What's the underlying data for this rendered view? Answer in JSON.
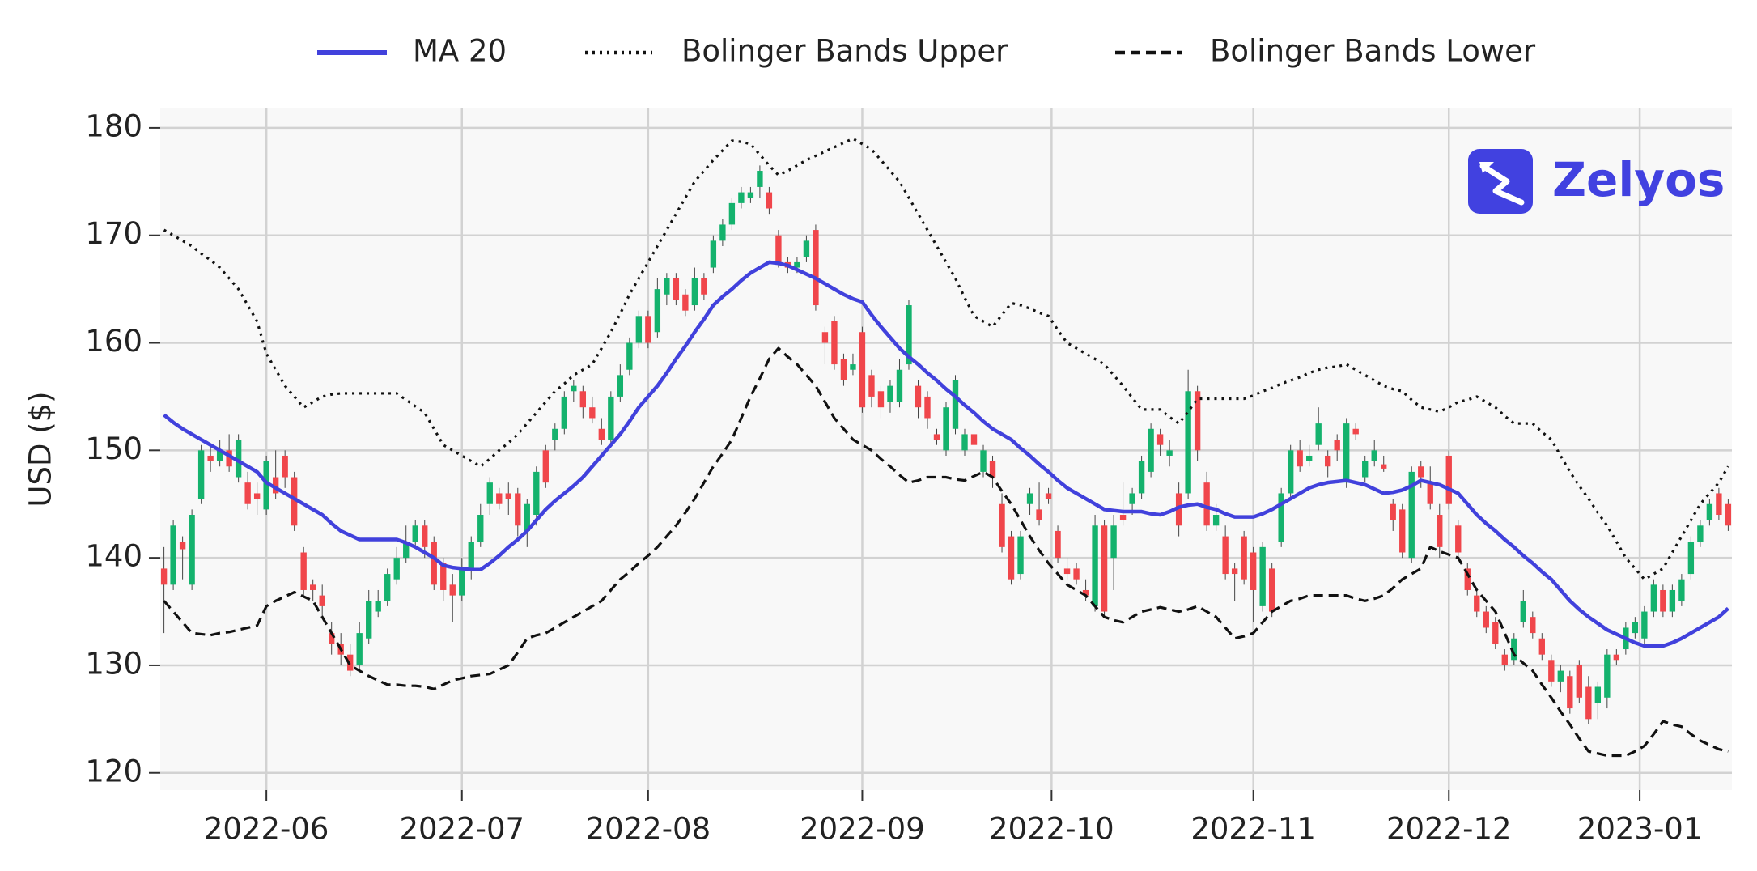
{
  "chart_data": {
    "type": "candlestick",
    "categories": [
      null,
      null,
      null,
      null,
      null,
      null,
      null,
      null,
      null,
      null,
      null,
      null,
      null,
      null,
      null,
      null,
      null,
      null,
      null,
      null,
      null,
      null,
      null,
      null,
      null,
      null,
      null,
      null,
      null,
      null,
      null,
      null,
      null,
      null,
      null,
      null,
      null,
      null,
      null,
      null,
      null,
      null,
      null,
      null,
      null,
      null,
      null,
      null,
      null,
      null,
      null,
      null,
      null,
      null,
      null,
      null,
      null,
      null,
      null,
      null,
      null,
      null,
      null,
      null,
      null,
      null,
      null,
      null,
      null,
      null,
      null,
      null,
      null,
      null,
      null,
      null,
      null,
      null,
      null,
      null,
      null,
      null,
      null,
      null,
      null,
      null,
      null,
      null,
      null,
      null,
      null,
      null,
      null,
      null,
      null,
      null,
      null,
      null,
      null,
      null,
      null,
      null,
      null,
      null,
      null,
      null,
      null,
      null,
      null,
      null,
      null,
      null,
      null,
      null,
      null,
      null,
      null,
      null,
      null,
      null,
      null,
      null,
      null,
      null,
      null,
      null,
      null,
      null,
      null,
      null,
      null,
      null,
      null,
      null,
      null,
      null,
      null,
      null,
      null,
      null,
      null,
      null,
      null,
      null,
      null,
      null,
      null,
      null,
      null,
      null,
      null,
      null,
      null,
      null,
      null,
      null,
      null,
      null,
      null,
      null,
      null,
      null,
      null,
      null,
      null,
      null,
      null,
      null,
      null
    ],
    "open": [
      139,
      137.5,
      141.5,
      137.5,
      145.5,
      149.5,
      149,
      150,
      147.5,
      147,
      146,
      144.5,
      147.5,
      149.5,
      147.5,
      140.5,
      137.5,
      136.5,
      133,
      132,
      131,
      130,
      132.5,
      135,
      136,
      138,
      140,
      141.5,
      143,
      141.5,
      139.5,
      137.5,
      136.5,
      139,
      141.5,
      145,
      146,
      146,
      146,
      142.5,
      144,
      150,
      151,
      152,
      155.5,
      155.5,
      154,
      152,
      151,
      155,
      157.5,
      160,
      162.5,
      161,
      164.5,
      166,
      164.5,
      163.5,
      166,
      167,
      169.5,
      171,
      173,
      173.5,
      174.5,
      174,
      170,
      167.5,
      167,
      168,
      170.5,
      161,
      162,
      158.5,
      157.5,
      161,
      157,
      155.5,
      154.5,
      154.5,
      158,
      156,
      155,
      151.5,
      150,
      152,
      150,
      151.5,
      148,
      149,
      145,
      142,
      138.5,
      145,
      144.5,
      146,
      142.5,
      139,
      139,
      137,
      135.5,
      143,
      140,
      144,
      145,
      146,
      148,
      151.5,
      149.5,
      146,
      146,
      155.5,
      147,
      143,
      142,
      139,
      142,
      140.5,
      135.5,
      139,
      141.5,
      146,
      150,
      149,
      150.5,
      149.5,
      151,
      147,
      152,
      147.5,
      149,
      148.7,
      145,
      144.5,
      140,
      148.5,
      147,
      144,
      149.5,
      143,
      139,
      136.5,
      135,
      134,
      131,
      130.5,
      134,
      134.5,
      132.5,
      130.5,
      128.5,
      129,
      130,
      128,
      126.5,
      127,
      131,
      131.5,
      133,
      132.5,
      135,
      137,
      135,
      136,
      138.5,
      141.5,
      143.5,
      146,
      145
    ],
    "high": [
      141,
      143.5,
      142,
      144.5,
      150.5,
      150.5,
      151,
      151.5,
      151.5,
      148,
      147,
      149.5,
      150,
      150,
      148,
      141,
      138,
      137.5,
      134,
      133,
      132,
      134,
      137,
      137,
      139,
      141,
      143,
      143.5,
      143.5,
      142,
      140,
      138.5,
      140,
      142,
      145,
      147.5,
      146.5,
      147,
      146.5,
      145.5,
      148.5,
      150.5,
      152.5,
      155.5,
      156.5,
      156,
      155,
      153,
      155.5,
      158,
      160.5,
      163,
      163,
      166,
      166.5,
      166.5,
      165,
      167,
      166.5,
      170,
      171.5,
      173.5,
      174.5,
      174.5,
      176.5,
      174.5,
      170.5,
      168,
      168,
      170,
      171,
      161.5,
      162.5,
      159,
      159,
      161.5,
      157.5,
      156,
      156.5,
      158.5,
      164,
      156.5,
      155.5,
      152,
      154.5,
      157,
      152,
      152,
      150.5,
      149.5,
      146,
      142.5,
      142.5,
      146.5,
      147,
      146.5,
      143,
      140,
      139.5,
      138,
      144,
      143.5,
      144,
      147,
      146.5,
      149.5,
      152.5,
      152,
      151,
      147,
      157.5,
      156,
      148,
      145,
      143,
      139.5,
      142.5,
      141,
      141.5,
      139.5,
      146.5,
      150.5,
      151,
      150.5,
      154,
      150,
      151.5,
      153,
      152.5,
      149.5,
      151,
      149.5,
      145.5,
      145,
      148.5,
      149,
      148.5,
      145,
      150,
      143.5,
      139.5,
      137,
      135.5,
      134.5,
      131.5,
      133,
      137,
      135,
      133,
      131,
      130,
      129.5,
      130.5,
      129,
      128.5,
      131.5,
      131.5,
      134,
      134.5,
      135.5,
      138,
      137.5,
      137.5,
      138.5,
      142,
      143.5,
      145.5,
      146.5,
      145.5
    ],
    "low": [
      133,
      137,
      138,
      137,
      145,
      148,
      148.5,
      148,
      147,
      144.5,
      144,
      144,
      145.5,
      146.5,
      142.5,
      136.5,
      136,
      134.5,
      131,
      130,
      129,
      129.5,
      132,
      134.5,
      135.5,
      137.5,
      139.5,
      141,
      140,
      137,
      136,
      134,
      136,
      138,
      141,
      144,
      144.5,
      144,
      142,
      141,
      143,
      146.5,
      150,
      151.5,
      154.5,
      153,
      152.5,
      150.5,
      150.5,
      154.5,
      157,
      159.5,
      159.5,
      160.5,
      163.5,
      163.5,
      162.5,
      163,
      164,
      166.5,
      169,
      170.5,
      172.5,
      173,
      173.5,
      172,
      167,
      166.5,
      166.5,
      167.5,
      163,
      158,
      157.5,
      156,
      157,
      153.5,
      154,
      153,
      153.5,
      154,
      157.5,
      153,
      152,
      150.5,
      149.5,
      151.5,
      149.5,
      149,
      147.5,
      146.5,
      140.5,
      137.5,
      138,
      144,
      143,
      145,
      139.5,
      138,
      137.5,
      136,
      135,
      134.5,
      137,
      143,
      144,
      145.5,
      147.5,
      149.5,
      148.5,
      142,
      145.5,
      149,
      142.5,
      142.5,
      138,
      136,
      137.5,
      134,
      135,
      134.5,
      141,
      145.5,
      148,
      148.5,
      150,
      147.5,
      149,
      146.5,
      151,
      147,
      148.5,
      148,
      142.5,
      140,
      139.5,
      146.5,
      144.5,
      140,
      144.5,
      140,
      136.5,
      134.5,
      133,
      131.5,
      129.5,
      130,
      133.5,
      132.5,
      130.5,
      128,
      127.5,
      125.5,
      126.5,
      124.5,
      125,
      126,
      130,
      131,
      132.5,
      132,
      134.5,
      134.5,
      134.5,
      135.5,
      138,
      141,
      143,
      143.5,
      142.5
    ],
    "close": [
      137.5,
      143,
      140.8,
      144,
      150,
      149,
      150,
      148.5,
      151,
      145,
      145.5,
      149,
      146,
      147.5,
      143,
      137,
      137,
      135.5,
      132,
      131,
      129.5,
      133,
      136,
      136,
      138.5,
      140,
      141.5,
      143,
      141,
      137.5,
      137,
      136.5,
      139,
      141.5,
      144,
      147,
      145,
      145.5,
      143,
      145,
      148,
      147,
      152,
      155,
      156,
      154,
      153,
      151,
      155,
      157,
      160,
      162.5,
      160,
      165,
      166,
      164,
      163,
      166,
      164.5,
      169.5,
      171,
      173,
      174,
      174,
      176,
      172.5,
      167.5,
      167,
      167.5,
      169.5,
      163.5,
      160,
      158,
      156.5,
      158,
      154,
      155,
      154,
      156,
      157.5,
      163.5,
      154,
      153,
      151,
      154,
      156.5,
      151.5,
      150.5,
      150,
      147.5,
      141,
      138,
      142,
      146,
      143.5,
      145.5,
      140,
      138.5,
      138,
      136.5,
      143,
      135,
      143,
      143.5,
      146,
      149,
      152,
      150.5,
      150,
      143,
      155.5,
      150,
      143,
      144,
      138.5,
      138.5,
      138,
      137,
      141,
      135,
      146,
      150,
      148.5,
      149.5,
      152.5,
      148.5,
      150,
      152.5,
      151.5,
      149,
      150,
      148.3,
      143.5,
      140.5,
      148,
      147.5,
      145,
      141,
      145,
      140.5,
      137,
      135,
      133.5,
      132,
      130,
      132.5,
      136,
      133,
      131,
      128.5,
      129.5,
      126,
      127,
      125,
      128,
      131,
      130.5,
      133.5,
      134,
      135,
      137.5,
      135,
      137,
      138,
      141.5,
      143,
      145,
      144,
      143
    ],
    "up_color": "#14b26d",
    "down_color": "#f0464b",
    "series": [
      {
        "name": "MA 20",
        "color": "#4141dc",
        "style": "solid",
        "values": [
          153.3,
          152.6,
          152,
          151.5,
          151,
          150.5,
          150,
          149.5,
          149,
          148.5,
          148,
          147,
          146.5,
          146,
          145.5,
          145,
          144.5,
          144,
          143.2,
          142.5,
          142.1,
          141.7,
          141.7,
          141.7,
          141.7,
          141.7,
          141.4,
          141,
          140.5,
          140,
          139.3,
          139.1,
          139,
          138.9,
          138.9,
          139.5,
          140.2,
          141,
          141.7,
          142.5,
          143.5,
          144.5,
          145.3,
          146,
          146.7,
          147.5,
          148.5,
          149.5,
          150.5,
          151.5,
          152.7,
          154,
          155,
          156,
          157.2,
          158.5,
          159.7,
          161,
          162.2,
          163.5,
          164.3,
          165,
          165.8,
          166.5,
          167,
          167.5,
          167.4,
          167.2,
          166.8,
          166.4,
          166,
          165.5,
          165,
          164.5,
          164.1,
          163.8,
          162.6,
          161.5,
          160.5,
          159.5,
          158.7,
          158,
          157.2,
          156.5,
          155.7,
          155,
          154.2,
          153.5,
          152.7,
          152,
          151.5,
          151,
          150.2,
          149.5,
          148.7,
          148,
          147.2,
          146.5,
          146,
          145.5,
          145,
          144.5,
          144.4,
          144.3,
          144.3,
          144.3,
          144.1,
          144,
          144.3,
          144.7,
          144.9,
          145,
          144.7,
          144.5,
          144.1,
          143.8,
          143.8,
          143.8,
          144.1,
          144.5,
          145,
          145.5,
          146,
          146.5,
          146.8,
          147,
          147.1,
          147.2,
          147,
          146.8,
          146.4,
          146,
          146.1,
          146.3,
          146.7,
          147.2,
          147,
          146.8,
          146.4,
          146,
          145,
          144,
          143.2,
          142.5,
          141.7,
          141,
          140.2,
          139.5,
          138.7,
          138,
          137,
          136,
          135.2,
          134.5,
          133.9,
          133.3,
          132.9,
          132.5,
          132.1,
          131.8,
          131.8,
          131.8,
          132.1,
          132.5,
          133,
          133.5,
          134,
          134.5,
          135.3
        ]
      },
      {
        "name": "Bolinger Bands Upper",
        "color": "#111111",
        "style": "dotted",
        "values": [
          170.5,
          170,
          169.5,
          169,
          168.3,
          167.7,
          167,
          166,
          165,
          163.5,
          162,
          159,
          157.5,
          156,
          155,
          154,
          154.5,
          155,
          155.2,
          155.3,
          155.3,
          155.3,
          155.3,
          155.3,
          155.3,
          155.3,
          154.7,
          154.1,
          153.5,
          152,
          150.5,
          150,
          149.5,
          149,
          148.5,
          149.2,
          150,
          150.7,
          151.5,
          152.5,
          153.5,
          154.5,
          155.5,
          156.2,
          157,
          157.5,
          158,
          159.5,
          161,
          162.7,
          164.5,
          166,
          167.5,
          169,
          170.5,
          172,
          173.5,
          175,
          176,
          177,
          177.9,
          178.8,
          178.7,
          178.5,
          177.5,
          176.5,
          175.6,
          176,
          176.5,
          177,
          177.4,
          177.8,
          178.2,
          178.6,
          179,
          178.5,
          178,
          177,
          176,
          175,
          173.5,
          172,
          170.5,
          169,
          167.5,
          166,
          164.2,
          162.5,
          162,
          161.5,
          162.6,
          163.7,
          163.5,
          163.2,
          162.8,
          162.5,
          161.2,
          160,
          159.5,
          159,
          158.5,
          158,
          157,
          156,
          154.9,
          153.8,
          153.8,
          153.8,
          153.1,
          152.5,
          153.6,
          154.8,
          154.8,
          154.8,
          154.8,
          154.8,
          154.8,
          155.1,
          155.5,
          155.8,
          156.2,
          156.5,
          156.8,
          157.2,
          157.5,
          157.7,
          157.8,
          158,
          157.5,
          157,
          156.5,
          156,
          155.7,
          155.5,
          154.7,
          154,
          153.8,
          153.6,
          154,
          154.5,
          154.7,
          155,
          154.5,
          154,
          153.2,
          152.5,
          152.5,
          152.5,
          151.7,
          151,
          149.5,
          148,
          146.7,
          145.5,
          144.2,
          143,
          141.5,
          140,
          139,
          138,
          138.5,
          139,
          140.5,
          142,
          143.5,
          145,
          146,
          147,
          148.5
        ]
      },
      {
        "name": "Bolinger Bands Lower",
        "color": "#111111",
        "style": "dashed",
        "values": [
          136,
          135,
          134,
          133,
          132.9,
          132.8,
          133,
          133.1,
          133.3,
          133.5,
          133.7,
          135.5,
          136,
          136.4,
          136.8,
          136.4,
          136,
          134.5,
          133,
          131.5,
          130,
          129.5,
          129,
          128.6,
          128.2,
          128.2,
          128.1,
          128.1,
          128,
          127.8,
          128.2,
          128.6,
          128.8,
          129,
          129.1,
          129.2,
          129.6,
          130,
          131.2,
          132.5,
          132.8,
          133,
          133.5,
          134,
          134.5,
          135,
          135.5,
          136,
          137,
          138,
          138.7,
          139.5,
          140.2,
          141,
          142,
          143,
          144.2,
          145.5,
          147,
          148.5,
          149.7,
          151,
          153,
          155,
          156.7,
          158.5,
          159.5,
          158.7,
          158,
          157,
          156,
          154.5,
          153,
          152,
          151,
          150.5,
          150,
          149.2,
          148.5,
          147.7,
          147,
          147.2,
          147.5,
          147.5,
          147.5,
          147.3,
          147.2,
          147.6,
          148,
          147.5,
          146.2,
          145,
          143.5,
          142,
          140.7,
          139.5,
          138.5,
          137.5,
          137,
          136.5,
          135.5,
          134.5,
          134.2,
          134,
          134.5,
          135,
          135.2,
          135.4,
          135.2,
          135,
          135.2,
          135.5,
          135,
          134.5,
          133.5,
          132.5,
          132.7,
          133,
          134,
          135,
          135.5,
          136,
          136.2,
          136.5,
          136.5,
          136.5,
          136.5,
          136.5,
          136.2,
          136,
          136.2,
          136.5,
          137.2,
          138,
          138.5,
          139,
          141,
          140.6,
          140.3,
          140,
          138.5,
          137,
          136,
          135,
          133,
          131,
          130.2,
          129.5,
          128.2,
          127,
          125.7,
          124.5,
          123.2,
          122,
          121.8,
          121.6,
          121.6,
          121.6,
          122,
          122.5,
          123.6,
          124.8,
          124.5,
          124.3,
          123.6,
          123,
          122.6,
          122.2,
          122
        ]
      }
    ],
    "ylabel": "USD ($)",
    "ylim": [
      118.4,
      181.8
    ],
    "yticks": [
      120,
      130,
      140,
      150,
      160,
      170,
      180
    ],
    "xlim": [
      -0.4,
      168.4
    ],
    "xticks": [
      {
        "value": 11,
        "label": "2022-06"
      },
      {
        "value": 32,
        "label": "2022-07"
      },
      {
        "value": 52,
        "label": "2022-08"
      },
      {
        "value": 75,
        "label": "2022-09"
      },
      {
        "value": 95.33,
        "label": "2022-10"
      },
      {
        "value": 117,
        "label": "2022-11"
      },
      {
        "value": 138,
        "label": "2022-12"
      },
      {
        "value": 158.5,
        "label": "2023-01"
      }
    ],
    "grid": true,
    "legend": "top"
  },
  "logo": {
    "text": "Zelyos"
  }
}
